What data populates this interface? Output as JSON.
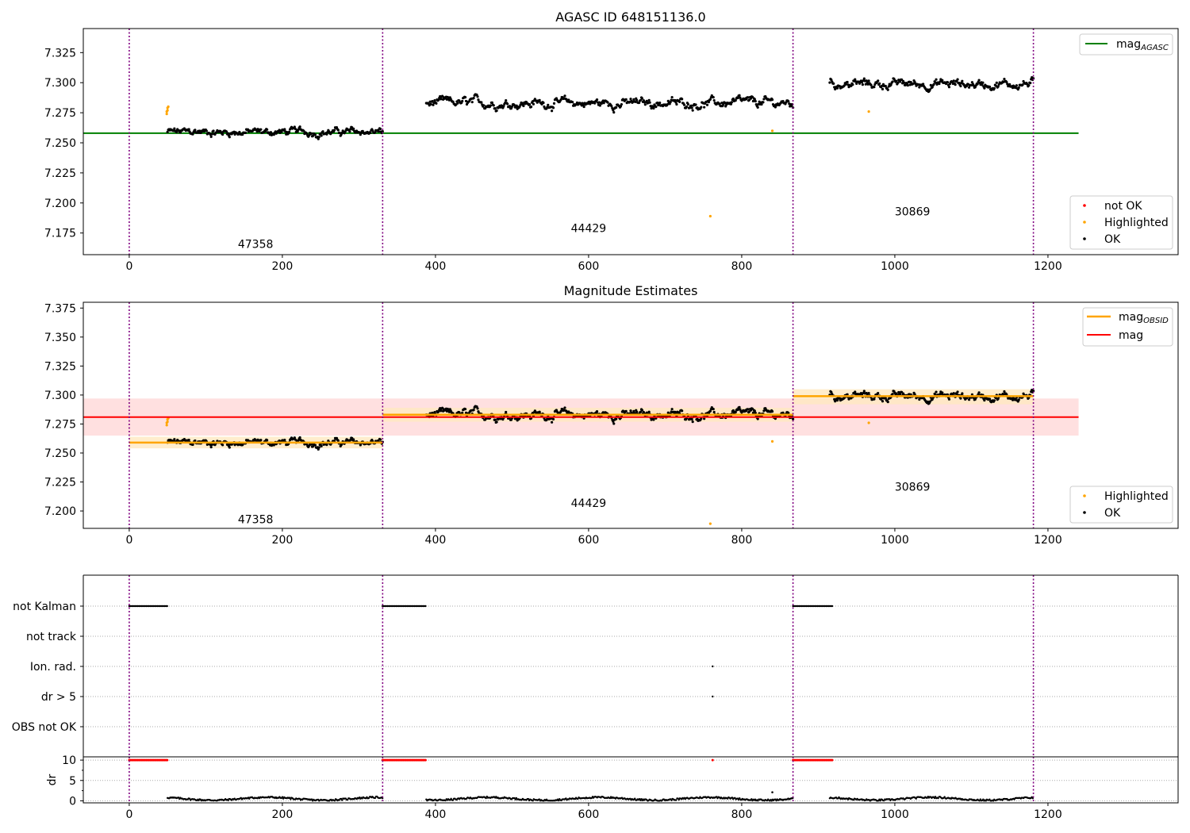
{
  "chart_data": [
    {
      "type": "scatter",
      "title": "AGASC ID 648151136.0",
      "xlim": [
        -60,
        1370
      ],
      "ylim": [
        7.157,
        7.345
      ],
      "xticks": [
        0,
        200,
        400,
        600,
        800,
        1000,
        1200
      ],
      "yticks": [
        7.175,
        7.2,
        7.225,
        7.25,
        7.275,
        7.3,
        7.325
      ],
      "ytick_labels": [
        "7.175",
        "7.200",
        "7.225",
        "7.250",
        "7.275",
        "7.300",
        "7.325"
      ],
      "obs_boundaries": [
        0,
        331,
        867,
        1181
      ],
      "obs_labels": [
        {
          "text": "47358",
          "x": 165,
          "y": 7.166
        },
        {
          "text": "44429",
          "x": 600,
          "y": 7.179
        },
        {
          "text": "30869",
          "x": 1023,
          "y": 7.193
        }
      ],
      "mag_agasc": 7.258,
      "mag_agasc_xrange": [
        -60,
        1240
      ],
      "segments": [
        {
          "x_start": 50,
          "x_end": 331,
          "center": 7.259,
          "spread": 0.0045
        },
        {
          "x_start": 388,
          "x_end": 867,
          "center": 7.283,
          "spread": 0.0055
        },
        {
          "x_start": 915,
          "x_end": 1181,
          "center": 7.299,
          "spread": 0.0055
        }
      ],
      "highlighted": [
        [
          49,
          7.274
        ],
        [
          49,
          7.276
        ],
        [
          50,
          7.277
        ],
        [
          50,
          7.279
        ],
        [
          51,
          7.28
        ],
        [
          759,
          7.189
        ],
        [
          840,
          7.26
        ],
        [
          966,
          7.276
        ]
      ],
      "legends": [
        {
          "placement": "top-right",
          "entries": [
            "mag_AGASC"
          ]
        },
        {
          "placement": "bottom-right",
          "entries": [
            "not OK",
            "Highlighted",
            "OK"
          ]
        }
      ]
    },
    {
      "type": "scatter",
      "title": "Magnitude Estimates",
      "xlim": [
        -60,
        1370
      ],
      "ylim": [
        7.185,
        7.38
      ],
      "xticks": [
        0,
        200,
        400,
        600,
        800,
        1000,
        1200
      ],
      "yticks": [
        7.2,
        7.225,
        7.25,
        7.275,
        7.3,
        7.325,
        7.35,
        7.375
      ],
      "ytick_labels": [
        "7.200",
        "7.225",
        "7.250",
        "7.275",
        "7.300",
        "7.325",
        "7.350",
        "7.375"
      ],
      "obs_boundaries": [
        0,
        331,
        867,
        1181
      ],
      "obs_labels": [
        {
          "text": "47358",
          "x": 165,
          "y": 7.193
        },
        {
          "text": "44429",
          "x": 600,
          "y": 7.207
        },
        {
          "text": "30869",
          "x": 1023,
          "y": 7.221
        }
      ],
      "mag": 7.281,
      "mag_band": [
        7.265,
        7.297
      ],
      "mag_xrange": [
        -60,
        1240
      ],
      "mag_obsid": [
        {
          "x_start": 0,
          "x_end": 331,
          "value": 7.259,
          "band": [
            7.254,
            7.264
          ]
        },
        {
          "x_start": 331,
          "x_end": 867,
          "value": 7.283,
          "band": [
            7.277,
            7.289
          ]
        },
        {
          "x_start": 867,
          "x_end": 1181,
          "value": 7.299,
          "band": [
            7.292,
            7.305
          ]
        }
      ],
      "legends": [
        {
          "placement": "top-right",
          "entries": [
            "mag_OBSID",
            "mag"
          ]
        },
        {
          "placement": "bottom-right",
          "entries": [
            "Highlighted",
            "OK"
          ]
        }
      ]
    },
    {
      "type": "scatter",
      "xlim": [
        -60,
        1370
      ],
      "ylabels": [
        "not Kalman",
        "not track",
        "Ion. rad.",
        "dr > 5",
        "OBS not OK"
      ],
      "flag_ranges": {
        "not Kalman": [
          [
            0,
            50
          ],
          [
            331,
            388
          ],
          [
            867,
            919
          ]
        ],
        "Ion. rad.": [
          [
            762,
            762
          ]
        ],
        "dr > 5": [
          [
            762,
            762
          ]
        ]
      },
      "obs_boundaries": [
        0,
        331,
        867,
        1181
      ]
    },
    {
      "type": "scatter",
      "xlim": [
        -60,
        1370
      ],
      "ylim": [
        -0.5,
        10.8
      ],
      "ylabel": "dr",
      "yticks": [
        0,
        5,
        10
      ],
      "xticks": [
        0,
        200,
        400,
        600,
        800,
        1000,
        1200
      ],
      "clipped_value": 10,
      "clipped_ranges": [
        [
          0,
          50
        ],
        [
          331,
          388
        ],
        [
          867,
          919
        ],
        [
          762,
          762
        ]
      ],
      "outliers": [
        [
          840,
          2.1
        ]
      ],
      "obs_boundaries": [
        0,
        331,
        867,
        1181
      ]
    }
  ],
  "legend_text": {
    "mag_agasc_main": "mag",
    "mag_agasc_sub": "AGASC",
    "mag_obsid_main": "mag",
    "mag_obsid_sub": "OBSID",
    "mag": "mag",
    "not_ok": "not OK",
    "highlighted": "Highlighted",
    "ok": "OK"
  },
  "colors": {
    "agasc_line": "#008000",
    "mag_line": "#ff0000",
    "mag_band": "#ffcccc",
    "obsid_line": "#ffa500",
    "obsid_band": "#ffe8c0",
    "highlighted": "#ffa500",
    "not_ok": "#ff0000",
    "ok": "#000000",
    "boundary": "#800080"
  }
}
